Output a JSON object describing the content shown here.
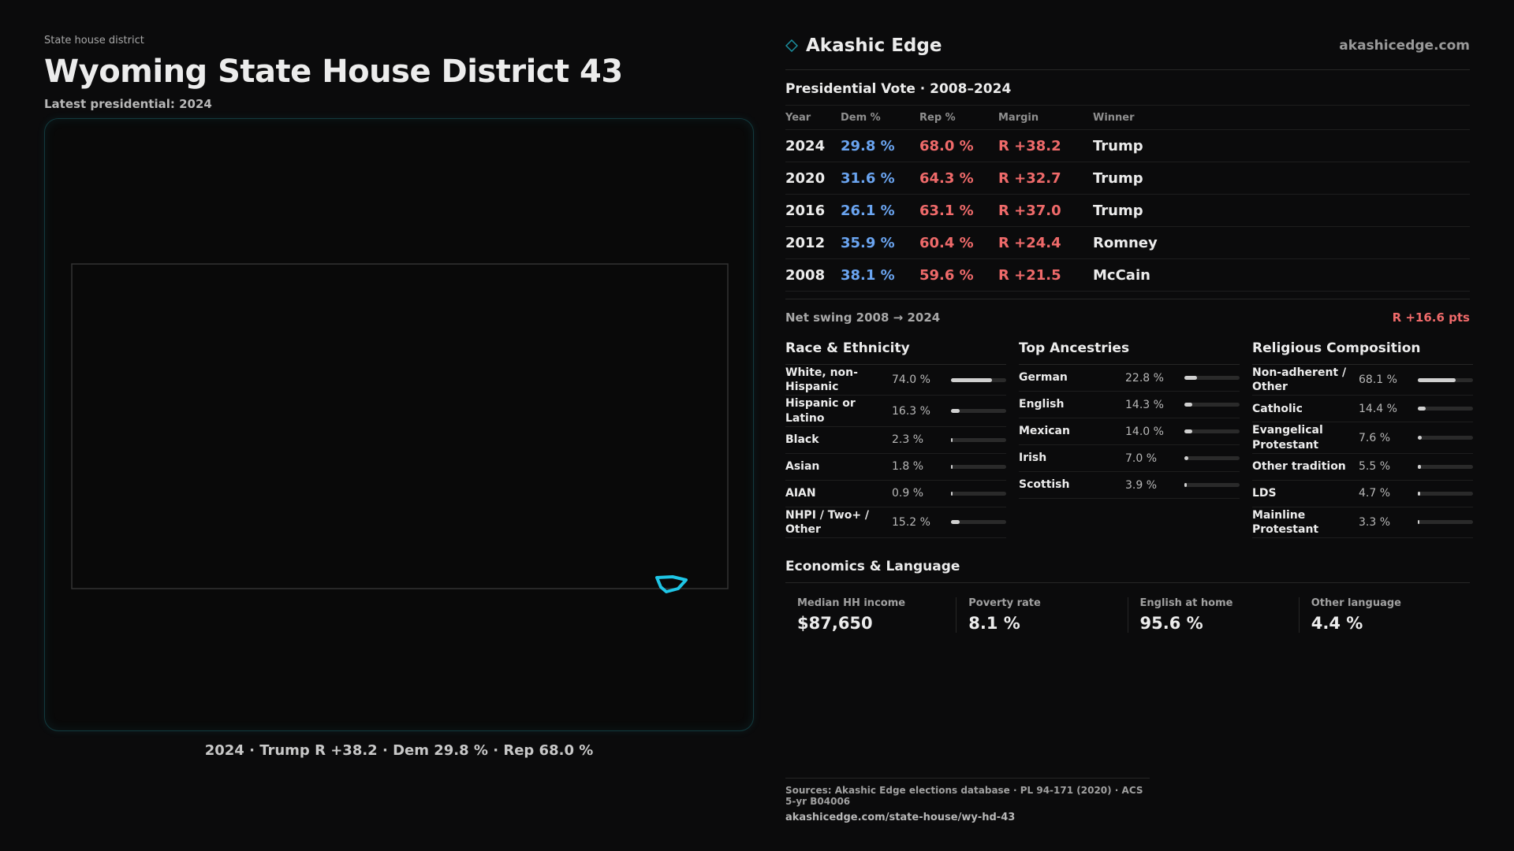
{
  "header": {
    "eyebrow": "State house district",
    "title": "Wyoming State House District 43",
    "subtitle": "Latest presidential: 2024"
  },
  "map": {
    "caption": "2024 · Trump R +38.2 · Dem 29.8 % · Rep 68.0 %",
    "highlight_color": "#1fc6e6"
  },
  "brand": {
    "name": "Akashic Edge",
    "url": "akashicedge.com",
    "logo_icon": "diamond-outline-icon"
  },
  "vote": {
    "title": "Presidential Vote · 2008–2024",
    "headers": [
      "Year",
      "Dem %",
      "Rep %",
      "Margin",
      "Winner"
    ],
    "rows": [
      {
        "year": "2024",
        "dem": "29.8 %",
        "rep": "68.0 %",
        "margin": "R +38.2",
        "winner": "Trump"
      },
      {
        "year": "2020",
        "dem": "31.6 %",
        "rep": "64.3 %",
        "margin": "R +32.7",
        "winner": "Trump"
      },
      {
        "year": "2016",
        "dem": "26.1 %",
        "rep": "63.1 %",
        "margin": "R +37.0",
        "winner": "Trump"
      },
      {
        "year": "2012",
        "dem": "35.9 %",
        "rep": "60.4 %",
        "margin": "R +24.4",
        "winner": "Romney"
      },
      {
        "year": "2008",
        "dem": "38.1 %",
        "rep": "59.6 %",
        "margin": "R +21.5",
        "winner": "McCain"
      }
    ],
    "swing_label": "Net swing 2008 → 2024",
    "swing_value": "R +16.6 pts"
  },
  "race": {
    "title": "Race & Ethnicity",
    "items": [
      {
        "label": "White, non-Hispanic",
        "value": "74.0 %",
        "pct": 74.0
      },
      {
        "label": "Hispanic or Latino",
        "value": "16.3 %",
        "pct": 16.3
      },
      {
        "label": "Black",
        "value": "2.3 %",
        "pct": 2.3
      },
      {
        "label": "Asian",
        "value": "1.8 %",
        "pct": 1.8
      },
      {
        "label": "AIAN",
        "value": "0.9 %",
        "pct": 0.9
      },
      {
        "label": "NHPI / Two+ / Other",
        "value": "15.2 %",
        "pct": 15.2
      }
    ]
  },
  "ancestry": {
    "title": "Top Ancestries",
    "items": [
      {
        "label": "German",
        "value": "22.8 %",
        "pct": 22.8
      },
      {
        "label": "English",
        "value": "14.3 %",
        "pct": 14.3
      },
      {
        "label": "Mexican",
        "value": "14.0 %",
        "pct": 14.0
      },
      {
        "label": "Irish",
        "value": "7.0 %",
        "pct": 7.0
      },
      {
        "label": "Scottish",
        "value": "3.9 %",
        "pct": 3.9
      }
    ]
  },
  "religion": {
    "title": "Religious Composition",
    "items": [
      {
        "label": "Non-adherent / Other",
        "value": "68.1 %",
        "pct": 68.1
      },
      {
        "label": "Catholic",
        "value": "14.4 %",
        "pct": 14.4
      },
      {
        "label": "Evangelical Protestant",
        "value": "7.6 %",
        "pct": 7.6
      },
      {
        "label": "Other tradition",
        "value": "5.5 %",
        "pct": 5.5
      },
      {
        "label": "LDS",
        "value": "4.7 %",
        "pct": 4.7
      },
      {
        "label": "Mainline Protestant",
        "value": "3.3 %",
        "pct": 3.3
      }
    ]
  },
  "econ": {
    "title": "Economics & Language",
    "items": [
      {
        "label": "Median HH income",
        "value": "$87,650"
      },
      {
        "label": "Poverty rate",
        "value": "8.1 %"
      },
      {
        "label": "English at home",
        "value": "95.6 %"
      },
      {
        "label": "Other language",
        "value": "4.4 %"
      }
    ]
  },
  "sources": {
    "line": "Sources: Akashic Edge elections database · PL 94-171 (2020) · ACS 5-yr B04006",
    "url": "akashicedge.com/state-house/wy-hd-43"
  }
}
